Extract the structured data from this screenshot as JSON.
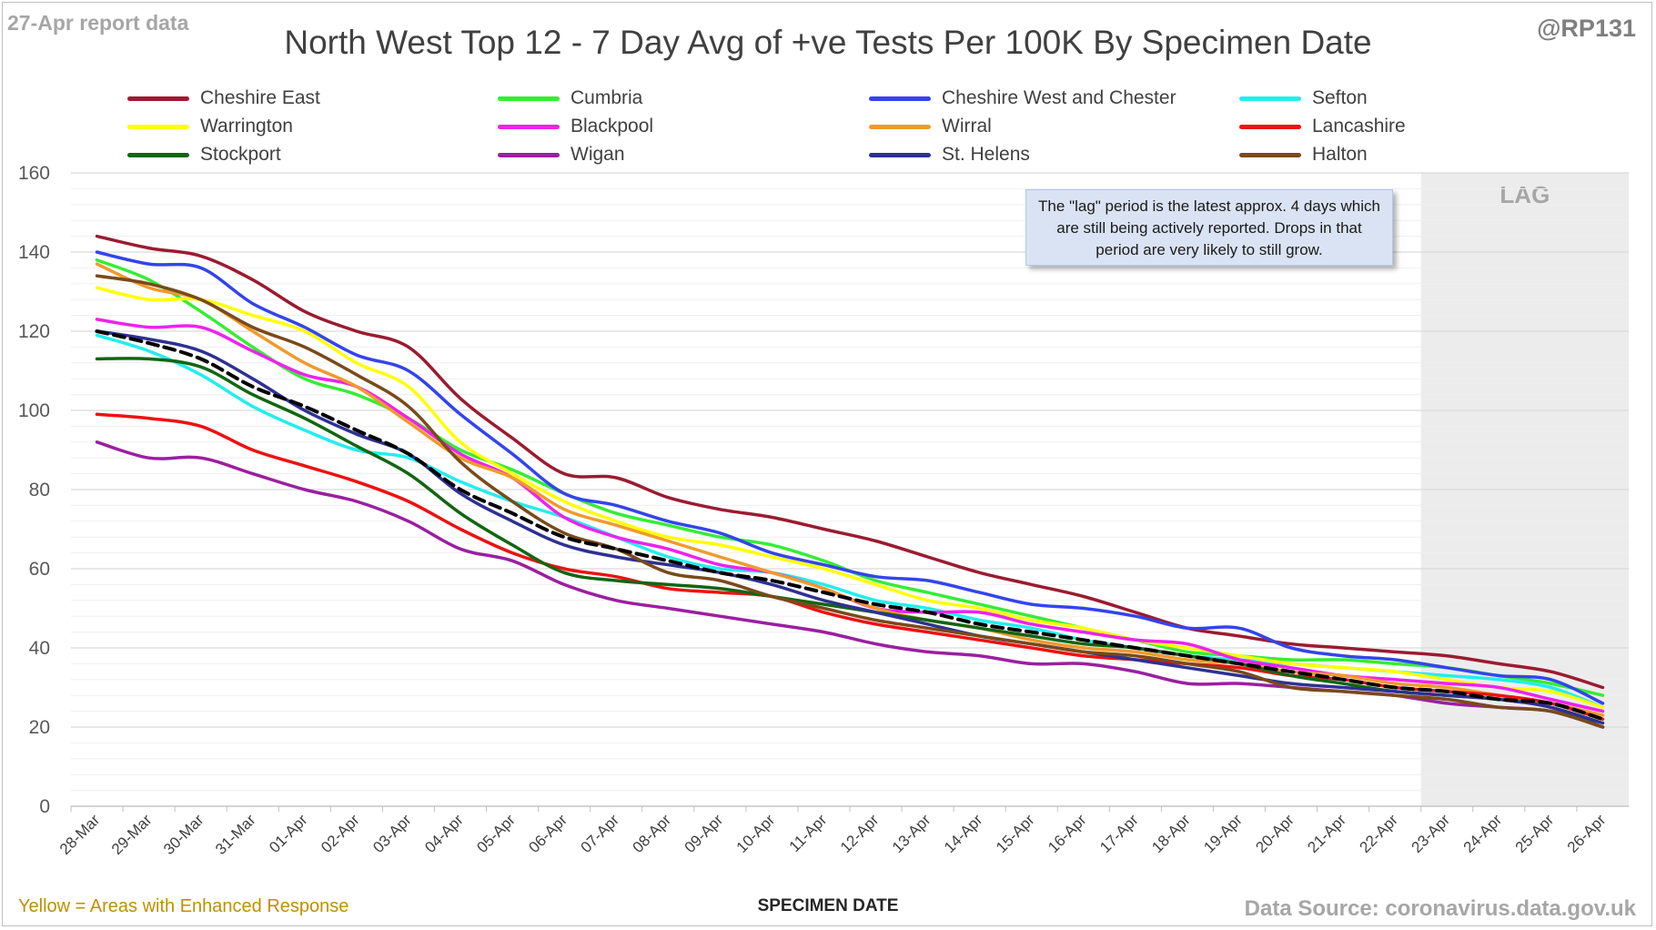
{
  "header": {
    "report_label": "27-Apr report data",
    "handle": "@RP131",
    "title": "North West Top 12 - 7 Day Avg of +ve Tests Per 100K By Specimen Date"
  },
  "footer": {
    "footnote": "Yellow = Areas with Enhanced Response",
    "source": "Data Source: coronavirus.data.gov.uk"
  },
  "annotation": {
    "text": "The \"lag\" period is the latest approx. 4 days which are still being actively reported. Drops in that period are very likely to still grow."
  },
  "chart_data": {
    "type": "line",
    "title": "North West Top 12 - 7 Day Avg of +ve Tests Per 100K By Specimen Date",
    "xlabel": "SPECIMEN DATE",
    "ylabel": "",
    "ylim": [
      0,
      160
    ],
    "yticks": [
      0,
      20,
      40,
      60,
      80,
      100,
      120,
      140,
      160
    ],
    "minor_grid_step": 4,
    "grid": true,
    "legend_position": "top",
    "lag_region": {
      "label": "LAG",
      "from": "22-Apr",
      "to": "26-Apr",
      "color": "#ececec"
    },
    "categories": [
      "28-Mar",
      "29-Mar",
      "30-Mar",
      "31-Mar",
      "01-Apr",
      "02-Apr",
      "03-Apr",
      "04-Apr",
      "05-Apr",
      "06-Apr",
      "07-Apr",
      "08-Apr",
      "09-Apr",
      "10-Apr",
      "11-Apr",
      "12-Apr",
      "13-Apr",
      "14-Apr",
      "15-Apr",
      "16-Apr",
      "17-Apr",
      "18-Apr",
      "19-Apr",
      "20-Apr",
      "21-Apr",
      "22-Apr",
      "23-Apr",
      "24-Apr",
      "25-Apr",
      "26-Apr"
    ],
    "series": [
      {
        "name": "Cheshire East",
        "color": "#9b1b30",
        "values": [
          144,
          141,
          139,
          133,
          125,
          120,
          116,
          103,
          93,
          84,
          83,
          78,
          75,
          73,
          70,
          67,
          63,
          59,
          56,
          53,
          49,
          45,
          43,
          41,
          40,
          39,
          38,
          36,
          34,
          30
        ]
      },
      {
        "name": "Cumbria",
        "color": "#33ee33",
        "values": [
          138,
          133,
          125,
          116,
          108,
          104,
          98,
          90,
          85,
          79,
          74,
          71,
          68,
          66,
          62,
          57,
          54,
          51,
          48,
          45,
          42,
          39,
          38,
          37,
          37,
          36,
          35,
          33,
          31,
          28
        ]
      },
      {
        "name": "Cheshire West and Chester",
        "color": "#3344ee",
        "values": [
          140,
          137,
          136,
          127,
          121,
          114,
          110,
          99,
          89,
          79,
          76,
          72,
          69,
          64,
          61,
          58,
          57,
          54,
          51,
          50,
          48,
          45,
          45,
          40,
          38,
          37,
          35,
          33,
          32,
          26
        ]
      },
      {
        "name": "Sefton",
        "color": "#22eeee",
        "values": [
          119,
          115,
          109,
          101,
          95,
          90,
          88,
          82,
          77,
          73,
          68,
          63,
          60,
          59,
          56,
          52,
          50,
          47,
          45,
          42,
          40,
          38,
          37,
          36,
          35,
          34,
          33,
          32,
          30,
          25
        ]
      },
      {
        "name": "Warrington",
        "color": "#ffff00",
        "values": [
          131,
          128,
          128,
          124,
          120,
          112,
          106,
          92,
          84,
          77,
          72,
          68,
          66,
          63,
          60,
          56,
          52,
          50,
          47,
          45,
          42,
          40,
          38,
          36,
          35,
          34,
          32,
          30,
          29,
          25
        ]
      },
      {
        "name": "Blackpool",
        "color": "#ee22ee",
        "values": [
          123,
          121,
          121,
          115,
          109,
          106,
          98,
          89,
          83,
          73,
          68,
          65,
          61,
          59,
          55,
          50,
          49,
          49,
          46,
          44,
          42,
          41,
          37,
          35,
          33,
          32,
          31,
          30,
          27,
          24
        ]
      },
      {
        "name": "Wirral",
        "color": "#f09a2a",
        "values": [
          137,
          131,
          128,
          120,
          112,
          106,
          97,
          88,
          83,
          75,
          71,
          67,
          63,
          59,
          55,
          50,
          47,
          45,
          42,
          40,
          39,
          37,
          36,
          34,
          33,
          31,
          30,
          28,
          26,
          23
        ]
      },
      {
        "name": "Lancashire",
        "color": "#ee1111",
        "values": [
          99,
          98,
          96,
          90,
          86,
          82,
          77,
          70,
          64,
          60,
          58,
          55,
          54,
          53,
          49,
          46,
          44,
          42,
          40,
          38,
          37,
          36,
          35,
          33,
          32,
          30,
          29,
          28,
          26,
          22
        ]
      },
      {
        "name": "Stockport",
        "color": "#116611",
        "values": [
          113,
          113,
          111,
          104,
          98,
          91,
          84,
          74,
          66,
          59,
          57,
          56,
          55,
          53,
          51,
          49,
          47,
          45,
          43,
          41,
          40,
          38,
          36,
          33,
          31,
          29,
          28,
          27,
          25,
          20
        ]
      },
      {
        "name": "Wigan",
        "color": "#9b1fa0",
        "values": [
          92,
          88,
          88,
          84,
          80,
          77,
          72,
          65,
          62,
          56,
          52,
          50,
          48,
          46,
          44,
          41,
          39,
          38,
          36,
          36,
          34,
          31,
          31,
          30,
          29,
          28,
          26,
          25,
          24,
          20
        ]
      },
      {
        "name": "St. Helens",
        "color": "#2e3192",
        "values": [
          120,
          118,
          115,
          108,
          100,
          94,
          89,
          79,
          72,
          66,
          63,
          61,
          59,
          56,
          52,
          49,
          46,
          43,
          41,
          39,
          37,
          35,
          33,
          31,
          30,
          29,
          28,
          27,
          25,
          21
        ]
      },
      {
        "name": "Halton",
        "color": "#7a4a1a",
        "values": [
          134,
          132,
          128,
          121,
          116,
          109,
          101,
          87,
          77,
          69,
          65,
          59,
          57,
          53,
          50,
          47,
          45,
          43,
          41,
          39,
          38,
          36,
          34,
          30,
          29,
          28,
          27,
          25,
          24,
          20
        ]
      },
      {
        "name": "",
        "color": "#000000",
        "dashed": true,
        "values": [
          120,
          117,
          113,
          106,
          101,
          95,
          89,
          80,
          74,
          68,
          65,
          62,
          59,
          57,
          54,
          51,
          49,
          46,
          44,
          42,
          40,
          38,
          36,
          34,
          32,
          30,
          29,
          27,
          26,
          22
        ]
      }
    ]
  }
}
